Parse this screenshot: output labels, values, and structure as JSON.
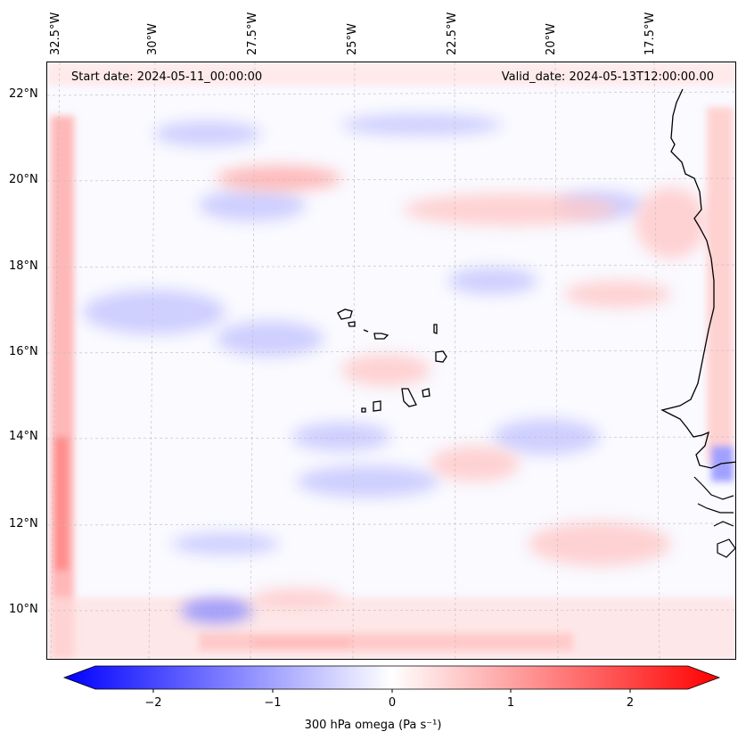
{
  "map": {
    "start_date": "Start date: 2024-05-11_00:00:00",
    "valid_date": "Valid_date: 2024-05-13T12:00:00.00",
    "lon_labels": [
      "32.5°W",
      "30°W",
      "27.5°W",
      "25°W",
      "22.5°W",
      "20°W",
      "17.5°W"
    ],
    "lat_labels": [
      "22°N",
      "20°N",
      "18°N",
      "16°N",
      "14°N",
      "12°N",
      "10°N"
    ],
    "colors": {
      "negative": "#0000ff",
      "neutral": "#ffffff",
      "positive": "#ff0000",
      "coastline": "#000000",
      "gridline": "#b0b0b0"
    }
  },
  "colorbar": {
    "label": "300 hPa omega (Pa s⁻¹)",
    "ticks": [
      "−2",
      "−1",
      "0",
      "1",
      "2"
    ],
    "range": [
      -2.5,
      2.5
    ]
  }
}
